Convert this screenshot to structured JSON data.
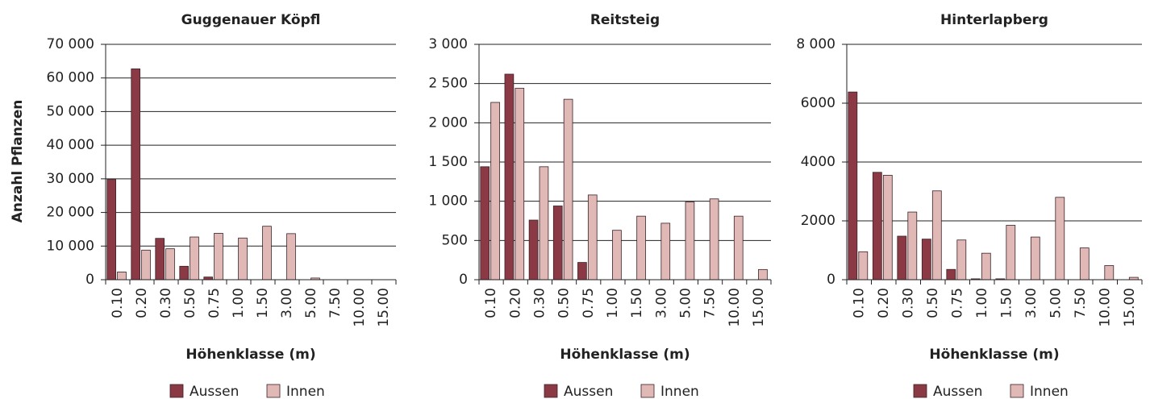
{
  "y_label": "Anzahl Pflanzen",
  "chart_data": [
    {
      "type": "bar",
      "title": "Guggenauer Köpfl",
      "x_label": "Höhenklasse (m)",
      "categories": [
        "0.10",
        "0.20",
        "0.30",
        "0.50",
        "0.75",
        "1.00",
        "1.50",
        "3.00",
        "5.00",
        "7.50",
        "10.00",
        "15.00"
      ],
      "series": [
        {
          "name": "Aussen",
          "color": "#8b3a45",
          "values": [
            29800,
            62700,
            12300,
            4000,
            800,
            0,
            0,
            0,
            0,
            0,
            0,
            0
          ]
        },
        {
          "name": "Innen",
          "color": "#e0b8b6",
          "values": [
            2300,
            8800,
            9200,
            12700,
            13800,
            12400,
            15900,
            13700,
            500,
            0,
            0,
            0
          ]
        }
      ],
      "ylim": [
        0,
        70000
      ],
      "yticks": [
        0,
        {
          "value": 10000,
          "label": "10 000"
        },
        {
          "value": 20000,
          "label": "20 000"
        },
        {
          "value": 30000,
          "label": "30 000"
        },
        {
          "value": 40000,
          "label": "40 000"
        },
        {
          "value": 50000,
          "label": "50 000"
        },
        {
          "value": 60000,
          "label": "60 000"
        },
        {
          "value": 70000,
          "label": "70 000"
        }
      ],
      "grid": true
    },
    {
      "type": "bar",
      "title": "Reitsteig",
      "x_label": "Höhenklasse (m)",
      "categories": [
        "0.10",
        "0.20",
        "0.30",
        "0.50",
        "0.75",
        "1.00",
        "1.50",
        "3.00",
        "5.00",
        "7.50",
        "10.00",
        "15.00"
      ],
      "series": [
        {
          "name": "Aussen",
          "color": "#8b3a45",
          "values": [
            1440,
            2620,
            760,
            940,
            220,
            0,
            0,
            0,
            0,
            0,
            0,
            0
          ]
        },
        {
          "name": "Innen",
          "color": "#e0b8b6",
          "values": [
            2260,
            2440,
            1440,
            2300,
            1080,
            630,
            810,
            720,
            990,
            1030,
            810,
            130
          ]
        }
      ],
      "ylim": [
        0,
        3000
      ],
      "yticks": [
        0,
        500,
        {
          "value": 1000,
          "label": "1 000"
        },
        {
          "value": 1500,
          "label": "1 500"
        },
        {
          "value": 2000,
          "label": "2 000"
        },
        {
          "value": 2500,
          "label": "2 500"
        },
        {
          "value": 3000,
          "label": "3 000"
        }
      ],
      "grid": true
    },
    {
      "type": "bar",
      "title": "Hinterlapberg",
      "x_label": "Höhenklasse (m)",
      "categories": [
        "0.10",
        "0.20",
        "0.30",
        "0.50",
        "0.75",
        "1.00",
        "1.50",
        "3.00",
        "5.00",
        "7.50",
        "10.00",
        "15.00"
      ],
      "series": [
        {
          "name": "Aussen",
          "color": "#8b3a45",
          "values": [
            6380,
            3650,
            1480,
            1380,
            350,
            30,
            30,
            0,
            0,
            0,
            0,
            0
          ]
        },
        {
          "name": "Innen",
          "color": "#e0b8b6",
          "values": [
            950,
            3550,
            2300,
            3020,
            1350,
            900,
            1850,
            1450,
            2800,
            1080,
            480,
            80
          ]
        }
      ],
      "ylim": [
        0,
        8000
      ],
      "yticks": [
        0,
        2000,
        4000,
        6000,
        {
          "value": 8000,
          "label": "8 000"
        }
      ],
      "grid": true
    }
  ]
}
